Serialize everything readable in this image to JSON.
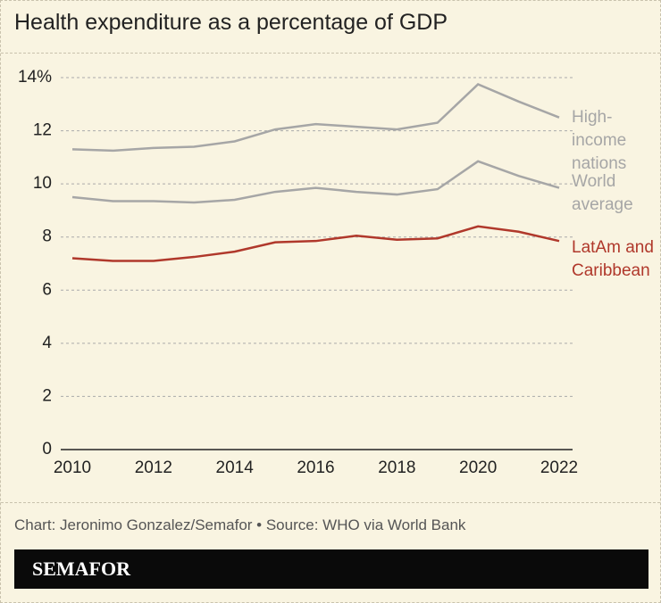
{
  "chart_data": {
    "type": "line",
    "title": "Health expenditure as a percentage of GDP",
    "x": [
      2010,
      2011,
      2012,
      2013,
      2014,
      2015,
      2016,
      2017,
      2018,
      2019,
      2020,
      2021,
      2022
    ],
    "xlim": [
      2010,
      2022
    ],
    "xticks": [
      2010,
      2012,
      2014,
      2016,
      2018,
      2020,
      2022
    ],
    "ylim": [
      0,
      14
    ],
    "yticks": [
      0,
      2,
      4,
      6,
      8,
      10,
      12,
      {
        "value": 14,
        "label": "14%"
      }
    ],
    "grid": true,
    "series": [
      {
        "name": "High-income nations",
        "color": "#a6a6a6",
        "values": [
          11.3,
          11.25,
          11.35,
          11.4,
          11.6,
          12.05,
          12.25,
          12.15,
          12.05,
          12.3,
          13.75,
          13.1,
          12.5
        ]
      },
      {
        "name": "World average",
        "color": "#a6a6a6",
        "values": [
          9.5,
          9.35,
          9.35,
          9.3,
          9.4,
          9.7,
          9.85,
          9.7,
          9.6,
          9.8,
          10.85,
          10.3,
          9.85
        ]
      },
      {
        "name": "LatAm and Caribbean",
        "color": "#b0382b",
        "values": [
          7.2,
          7.1,
          7.1,
          7.25,
          7.45,
          7.8,
          7.85,
          8.05,
          7.9,
          7.95,
          8.4,
          8.2,
          7.85
        ]
      }
    ],
    "source": "Chart: Jeronimo Gonzalez/Semafor • Source: WHO via World Bank",
    "brand": "SEMAFOR"
  }
}
